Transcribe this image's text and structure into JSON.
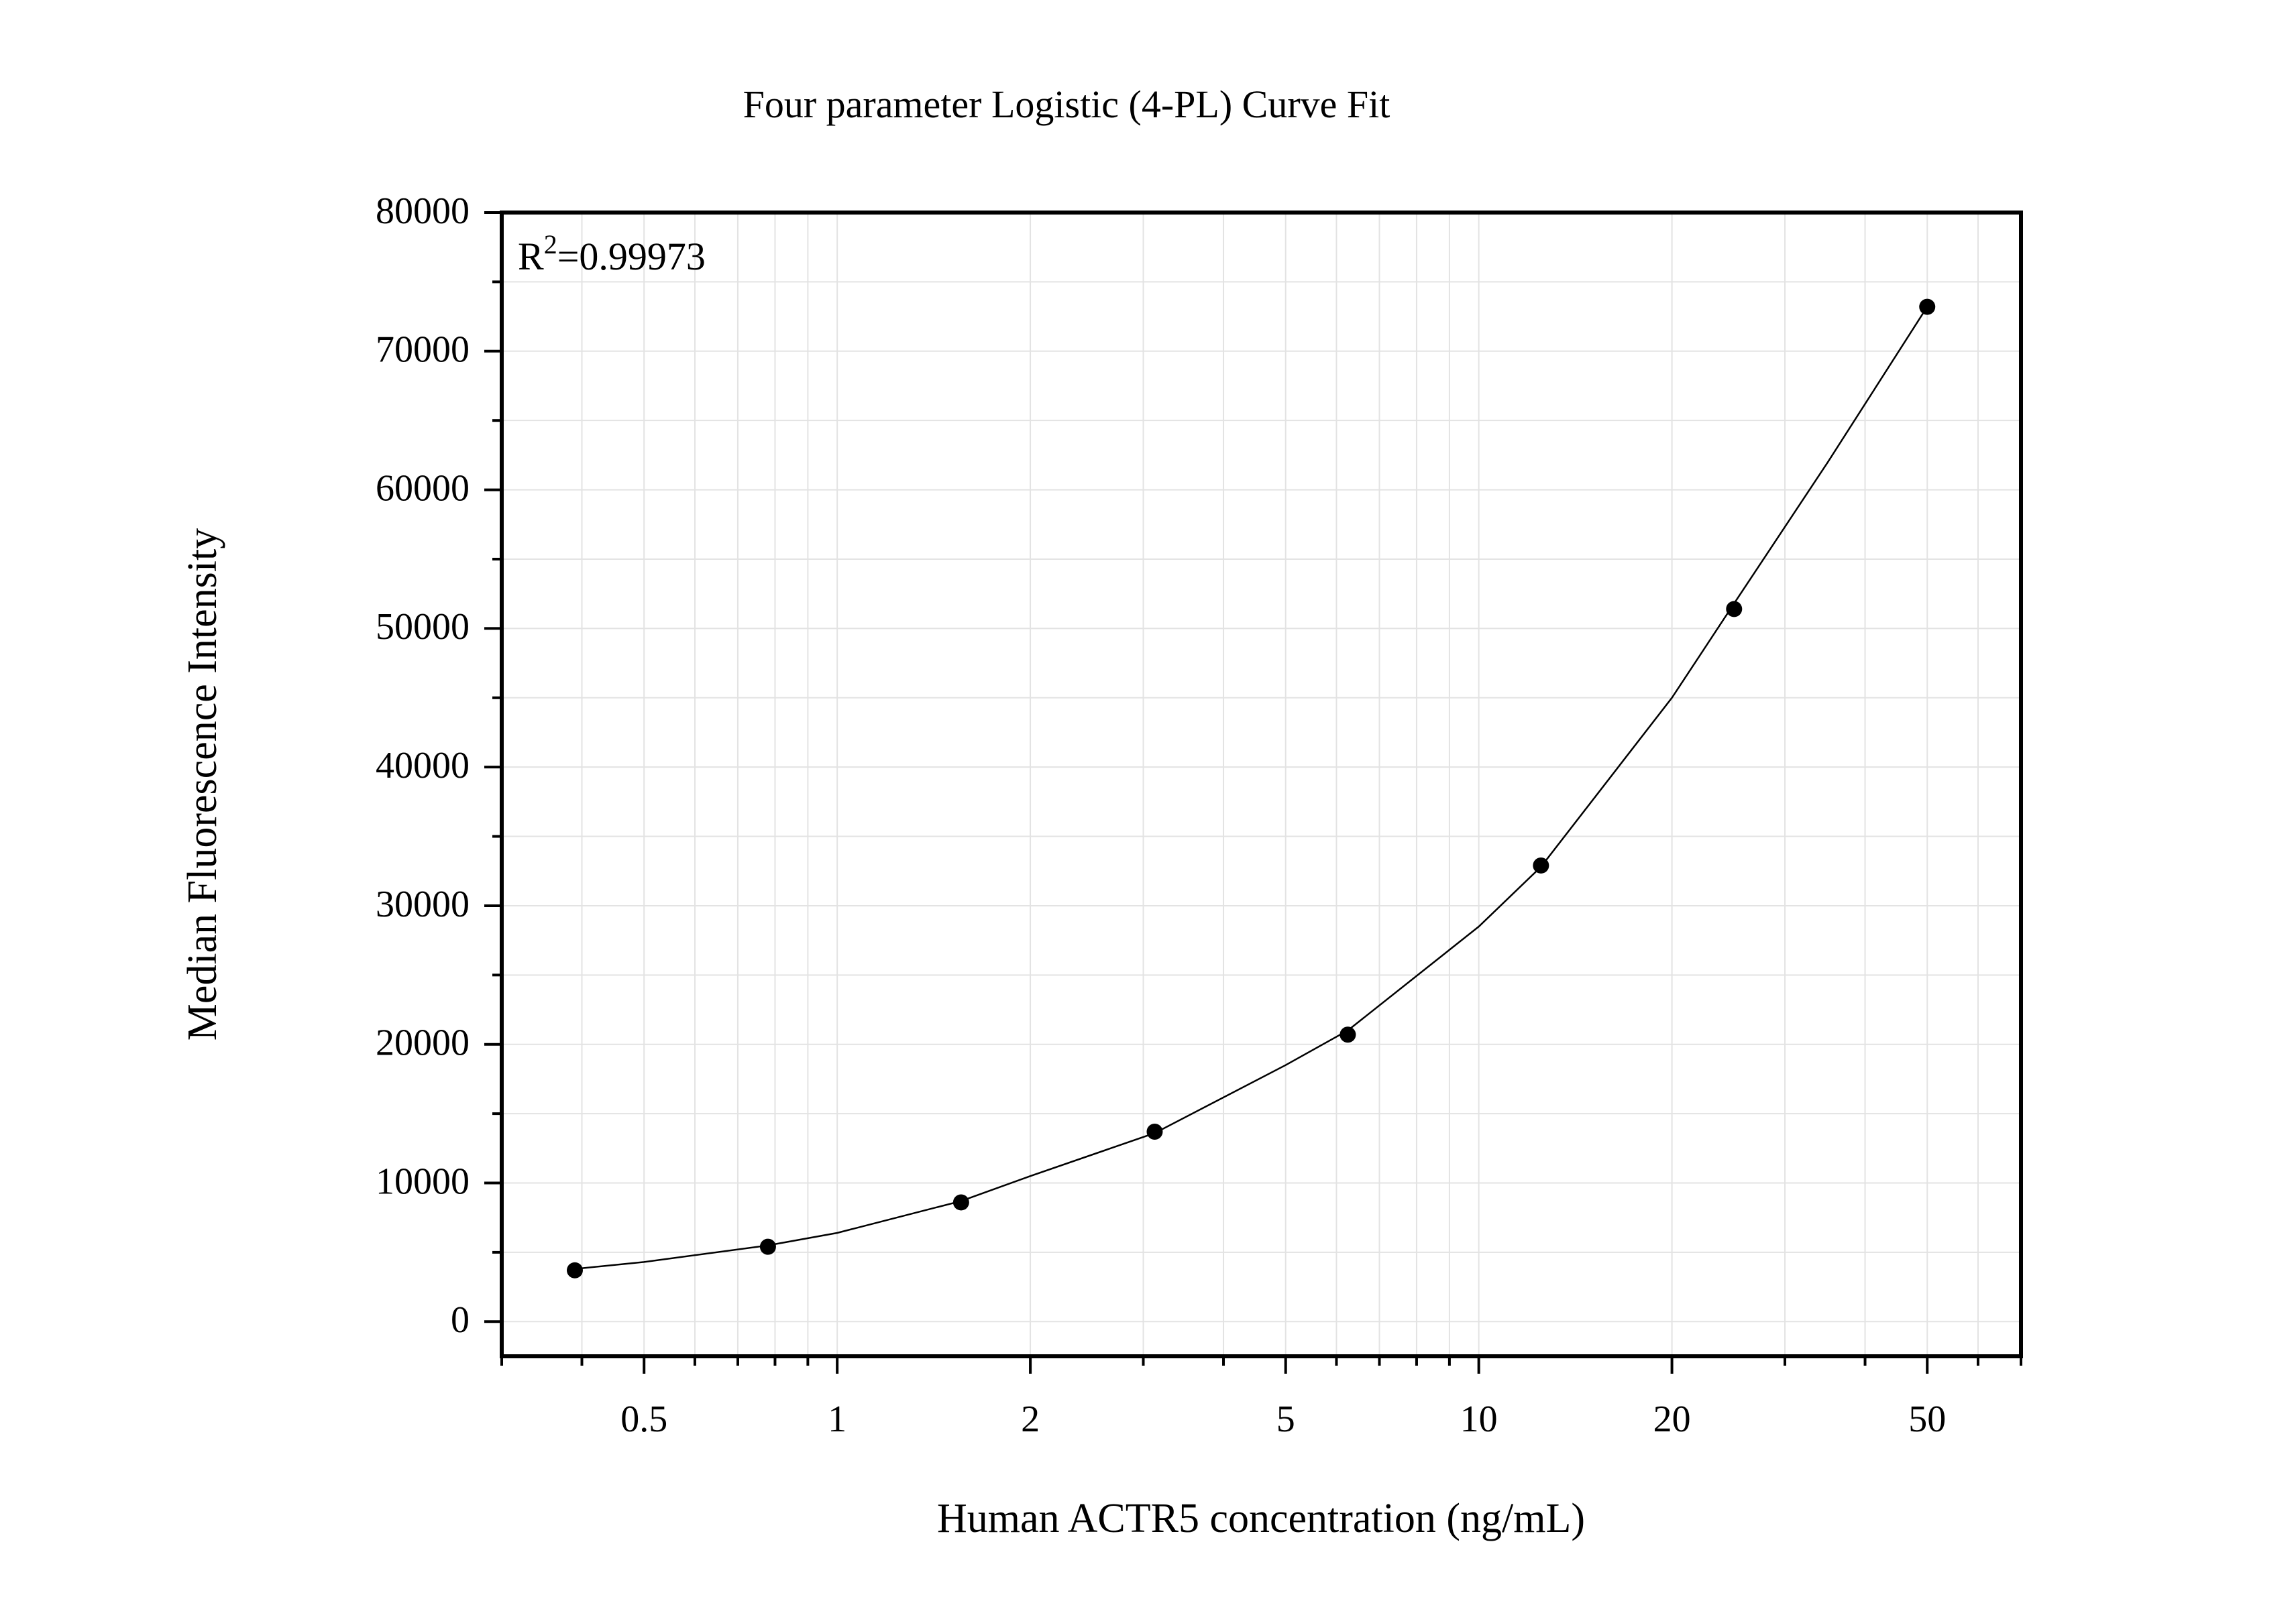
{
  "chart_data": {
    "type": "scatter",
    "title": "Four parameter Logistic (4-PL) Curve Fit",
    "xlabel": "Human ACTR5 concentration (ng/mL)",
    "ylabel": "Median Fluorescence Intensity",
    "x_scale": "log",
    "xlim": [
      0.3,
      70
    ],
    "ylim": [
      -2500,
      80000
    ],
    "x_ticks": [
      0.5,
      1,
      2,
      5,
      10,
      20,
      50
    ],
    "x_tick_labels": [
      "0.5",
      "1",
      "2",
      "5",
      "10",
      "20",
      "50"
    ],
    "y_ticks": [
      0,
      10000,
      20000,
      30000,
      40000,
      50000,
      60000,
      70000,
      80000
    ],
    "y_tick_labels": [
      "0",
      "10000",
      "20000",
      "30000",
      "40000",
      "50000",
      "60000",
      "70000",
      "80000"
    ],
    "grid": true,
    "annotation": {
      "base": "R",
      "sup": "2",
      "value": "=0.99973"
    },
    "series": [
      {
        "type": "scatter",
        "x": [
          0.39,
          0.78,
          1.56,
          3.125,
          6.25,
          12.5,
          25,
          50
        ],
        "y": [
          3700,
          5400,
          8600,
          13700,
          20700,
          32900,
          51400,
          73200
        ]
      },
      {
        "type": "line",
        "fit": "4-PL",
        "x": [
          0.39,
          0.5,
          0.78,
          1,
          1.56,
          2,
          3.125,
          5,
          6.25,
          10,
          12.5,
          20,
          25,
          35,
          50
        ],
        "y": [
          3800,
          4300,
          5500,
          6400,
          8700,
          10500,
          13600,
          18500,
          21000,
          28500,
          32800,
          45000,
          51800,
          62000,
          73200
        ]
      }
    ],
    "colors": {
      "points": "#000000",
      "curve": "#000000",
      "grid": "#e3e3e3"
    }
  }
}
